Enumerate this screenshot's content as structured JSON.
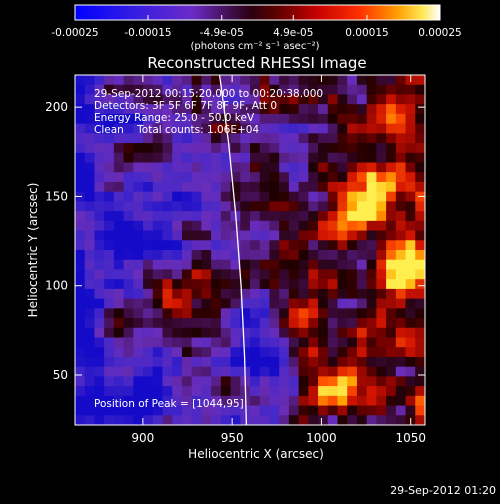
{
  "colorbar": {
    "min": -0.00025,
    "max": 0.00025,
    "ticks": [
      "-0.00025",
      "-0.00015",
      "-4.9e-05",
      "4.9e-05",
      "0.00015",
      "0.00025"
    ],
    "tick_values": [
      -0.00025,
      -0.00015,
      -4.9e-05,
      4.9e-05,
      0.00015,
      0.00025
    ],
    "units": "(photons cm⁻² s⁻¹ asec⁻²)",
    "colormap": [
      "#0000ff",
      "#5a2bd6",
      "#7a2bc0",
      "#1a0000",
      "#8b0000",
      "#ff2000",
      "#ff7a00",
      "#ffe000",
      "#ffffff"
    ]
  },
  "chart_data": {
    "type": "heatmap",
    "title": "Reconstructed RHESSI Image",
    "xlabel": "Heliocentric X (arcsec)",
    "ylabel": "Heliocentric Y (arcsec)",
    "xlim": [
      862,
      1058
    ],
    "ylim": [
      22,
      218
    ],
    "xticks": [
      900,
      950,
      1000,
      1050
    ],
    "yticks": [
      50,
      100,
      150,
      200
    ],
    "info": [
      "29-Sep-2012 00:15:20.000 to 00:20:38.000",
      "Detectors: 3F 5F 6F 7F 8F 9F, Att 0",
      "Energy Range: 25.0 - 50.0 keV",
      "Clean    Total counts: 1.06E+04"
    ],
    "peak_label": "Position of Peak = [1044,95]",
    "peak": [
      1044,
      95
    ],
    "limb_curve": [
      [
        943,
        218
      ],
      [
        948,
        180
      ],
      [
        952,
        140
      ],
      [
        955,
        100
      ],
      [
        957,
        60
      ],
      [
        958,
        22
      ]
    ],
    "grid": false
  },
  "timestamp": "29-Sep-2012 01:20"
}
